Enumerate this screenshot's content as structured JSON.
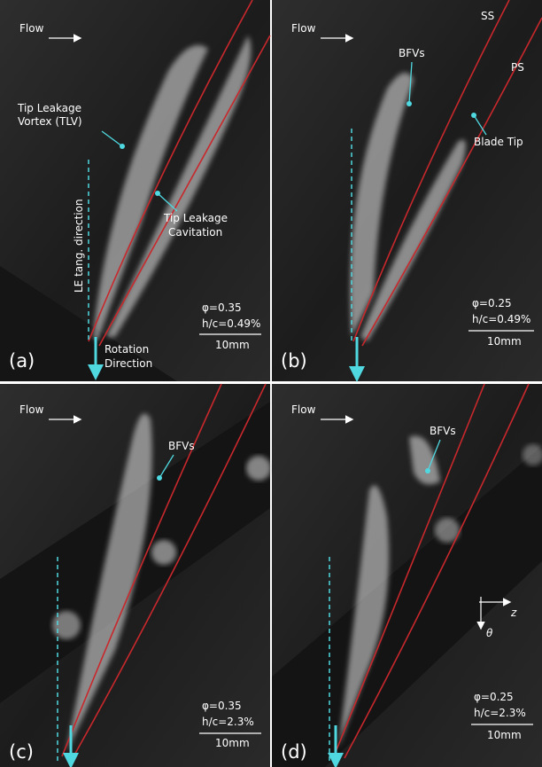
{
  "panels": [
    {
      "label": "(a)",
      "flow": "Flow",
      "annotations": [
        [
          "Tip Leakage",
          "Vortex (TLV)"
        ],
        [
          "Tip Leakage",
          "Cavitation"
        ],
        [
          "LE tang. direction"
        ],
        [
          "Rotation",
          "Direction"
        ]
      ],
      "phi": "φ=0.35",
      "hc": "h/c=0.49%",
      "scale": "10mm"
    },
    {
      "label": "(b)",
      "flow": "Flow",
      "annotations": [
        [
          "SS"
        ],
        [
          "PS"
        ],
        [
          "BFVs"
        ],
        [
          "Blade Tip"
        ]
      ],
      "phi": "φ=0.25",
      "hc": "h/c=0.49%",
      "scale": "10mm"
    },
    {
      "label": "(c)",
      "flow": "Flow",
      "annotations": [
        [
          "BFVs"
        ]
      ],
      "phi": "φ=0.35",
      "hc": "h/c=2.3%",
      "scale": "10mm"
    },
    {
      "label": "(d)",
      "flow": "Flow",
      "annotations": [
        [
          "BFVs"
        ]
      ],
      "axes": [
        "z",
        "θ"
      ],
      "phi": "φ=0.25",
      "hc": "h/c=2.3%",
      "scale": "10mm"
    }
  ]
}
